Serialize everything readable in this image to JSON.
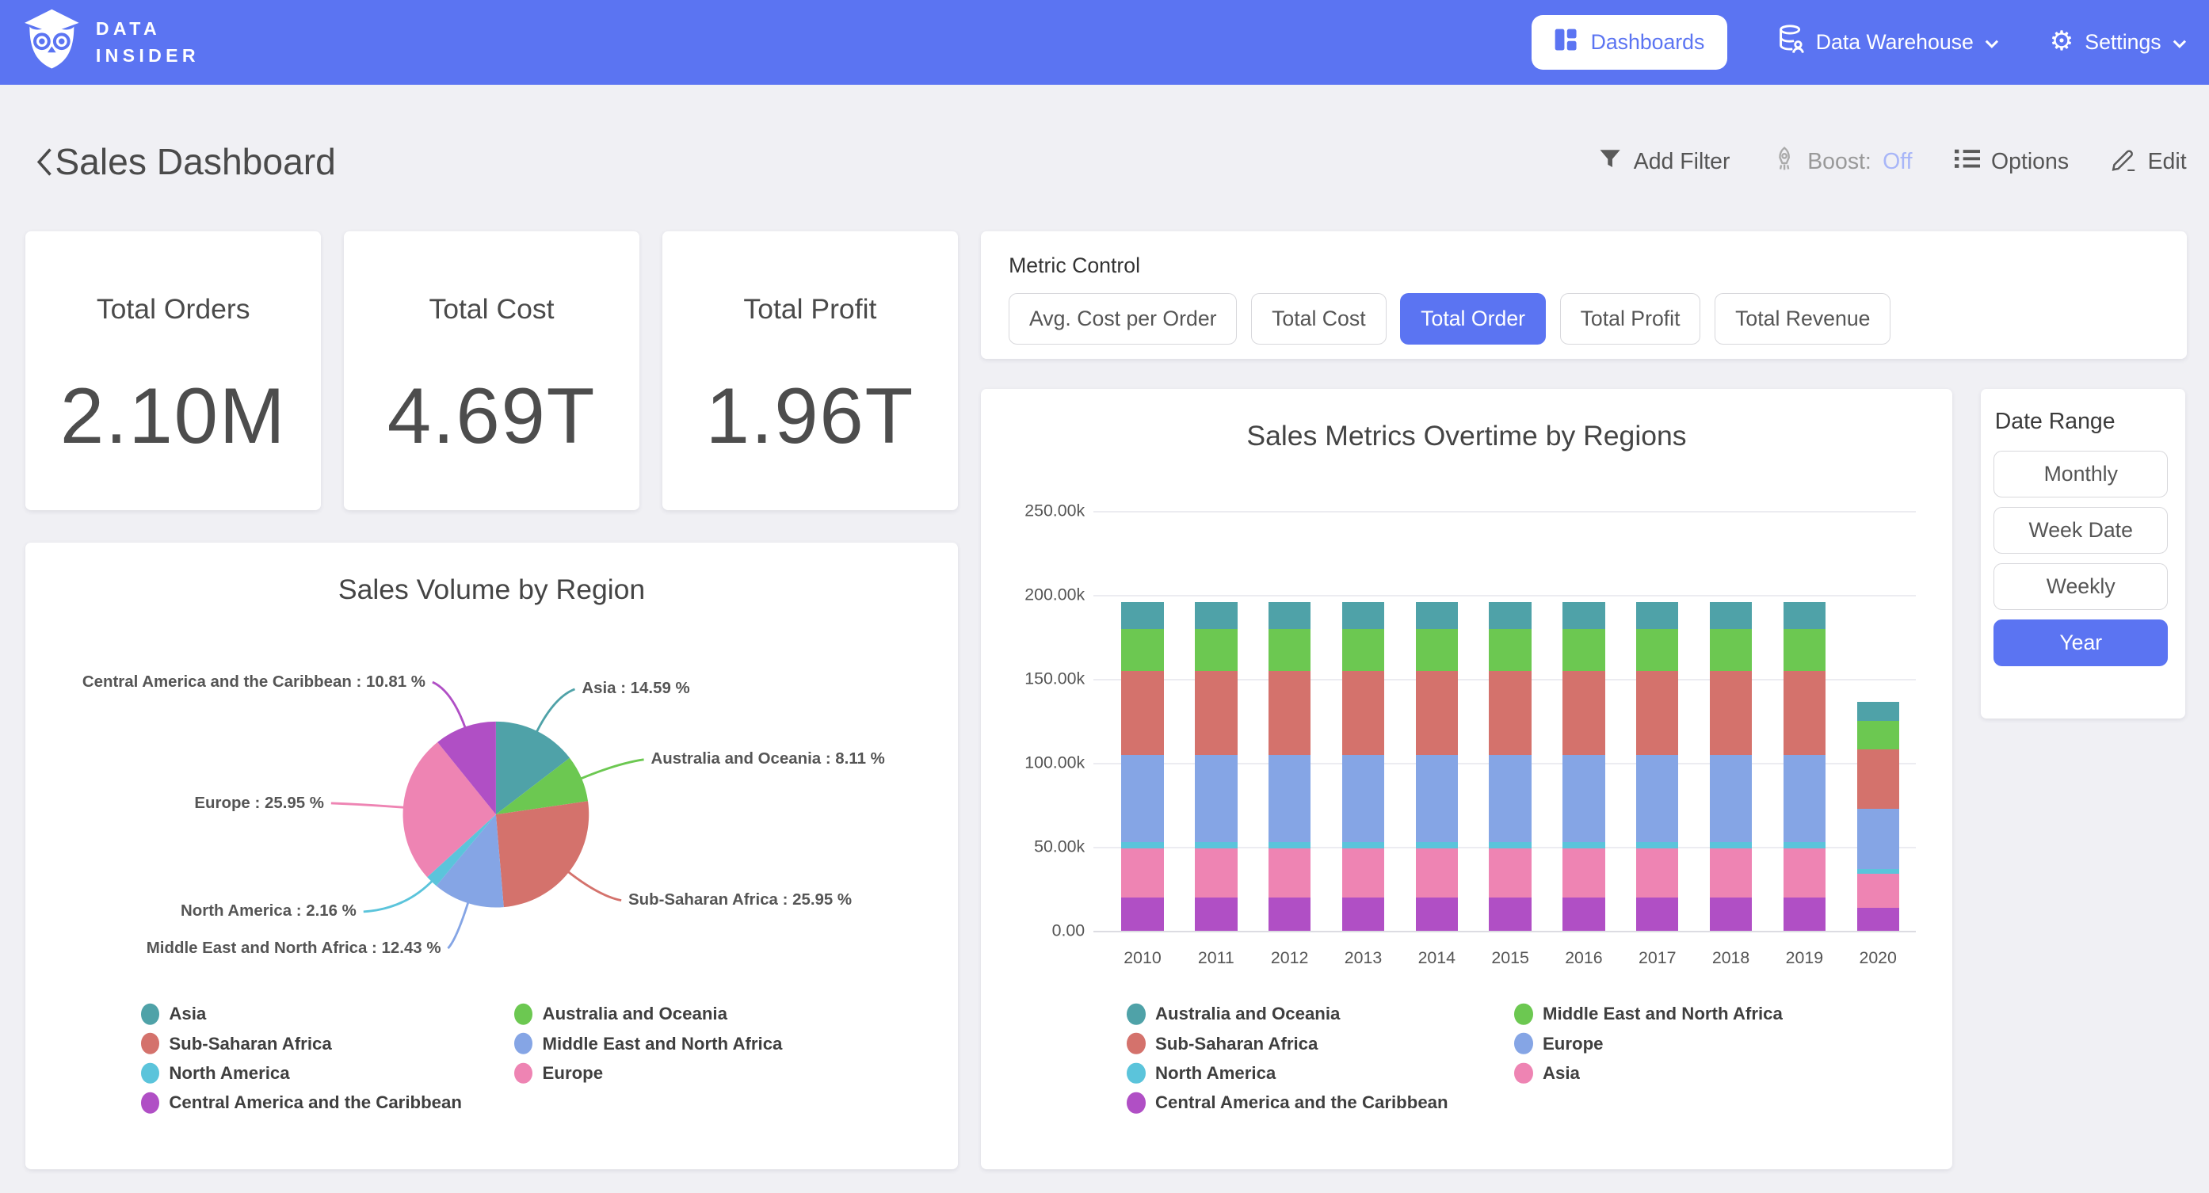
{
  "brand": {
    "line1": "DATA",
    "line2": "INSIDER"
  },
  "nav": {
    "dashboards": "Dashboards",
    "data_warehouse": "Data Warehouse",
    "settings": "Settings"
  },
  "header": {
    "title": "Sales Dashboard",
    "add_filter": "Add Filter",
    "boost_label": "Boost:",
    "boost_state": "Off",
    "options": "Options",
    "edit": "Edit"
  },
  "kpis": [
    {
      "label": "Total Orders",
      "value": "2.10M"
    },
    {
      "label": "Total Cost",
      "value": "4.69T"
    },
    {
      "label": "Total Profit",
      "value": "1.96T"
    }
  ],
  "metric_control": {
    "title": "Metric Control",
    "options": [
      "Avg. Cost per Order",
      "Total Cost",
      "Total Order",
      "Total Profit",
      "Total Revenue"
    ],
    "selected": "Total Order"
  },
  "date_range": {
    "title": "Date Range",
    "options": [
      "Monthly",
      "Week Date",
      "Weekly",
      "Year"
    ],
    "selected": "Year"
  },
  "colors": {
    "accent_blue": "#5B74F2",
    "boost_off": "#A8B6F8",
    "page_bg": "#F0F0F4",
    "teal": "#4FA2A8",
    "green": "#6CC851",
    "red": "#D4726C",
    "periwinkle": "#85A5E5",
    "cyan": "#5BC4DB",
    "pink": "#EE84B3",
    "purple": "#B04FC5"
  },
  "chart_data": [
    {
      "type": "pie",
      "title": "Sales Volume by Region",
      "value_format": "percent",
      "slices": [
        {
          "label": "Asia",
          "pct": 14.59,
          "color": "#4FA2A8"
        },
        {
          "label": "Australia and Oceania",
          "pct": 8.11,
          "color": "#6CC851"
        },
        {
          "label": "Sub-Saharan Africa",
          "pct": 25.95,
          "color": "#D4726C"
        },
        {
          "label": "Middle East and North Africa",
          "pct": 12.43,
          "color": "#85A5E5"
        },
        {
          "label": "North America",
          "pct": 2.16,
          "color": "#5BC4DB"
        },
        {
          "label": "Europe",
          "pct": 25.95,
          "color": "#EE84B3"
        },
        {
          "label": "Central America and the Caribbean",
          "pct": 10.81,
          "color": "#B04FC5"
        }
      ],
      "legend_columns": [
        [
          "Asia",
          "Sub-Saharan Africa",
          "North America",
          "Central America and the Caribbean"
        ],
        [
          "Australia and Oceania",
          "Middle East and North Africa",
          "Europe"
        ]
      ]
    },
    {
      "type": "bar",
      "stacked": true,
      "title": "Sales Metrics Overtime by Regions",
      "categories": [
        "2010",
        "2011",
        "2012",
        "2013",
        "2014",
        "2015",
        "2016",
        "2017",
        "2018",
        "2019",
        "2020"
      ],
      "values_unit": "thousands",
      "ylim": [
        0,
        250
      ],
      "yticks": [
        "0.00",
        "50.00k",
        "100.00k",
        "150.00k",
        "200.00k",
        "250.00k"
      ],
      "grid": true,
      "legend_position": "bottom",
      "series": [
        {
          "name": "Central America and the Caribbean",
          "color": "#B04FC5",
          "values": [
            20,
            20,
            20,
            20,
            20,
            20,
            20,
            20,
            20,
            20,
            14
          ]
        },
        {
          "name": "Asia",
          "color": "#EE84B3",
          "values": [
            29,
            29,
            29,
            29,
            29,
            29,
            29,
            29,
            29,
            29,
            20
          ]
        },
        {
          "name": "North America",
          "color": "#5BC4DB",
          "values": [
            4,
            4,
            4,
            4,
            4,
            4,
            4,
            4,
            4,
            4,
            3
          ]
        },
        {
          "name": "Europe",
          "color": "#85A5E5",
          "values": [
            52,
            52,
            52,
            52,
            52,
            52,
            52,
            52,
            52,
            52,
            36
          ]
        },
        {
          "name": "Sub-Saharan Africa",
          "color": "#D4726C",
          "values": [
            50,
            50,
            50,
            50,
            50,
            50,
            50,
            50,
            50,
            50,
            35
          ]
        },
        {
          "name": "Middle East and North Africa",
          "color": "#6CC851",
          "values": [
            25,
            25,
            25,
            25,
            25,
            25,
            25,
            25,
            25,
            25,
            17
          ]
        },
        {
          "name": "Australia and Oceania",
          "color": "#4FA2A8",
          "values": [
            16,
            16,
            16,
            16,
            16,
            16,
            16,
            16,
            16,
            16,
            11.5
          ]
        }
      ],
      "legend_columns": [
        [
          "Australia and Oceania",
          "Sub-Saharan Africa",
          "North America",
          "Central America and the Caribbean"
        ],
        [
          "Middle East and North Africa",
          "Europe",
          "Asia"
        ]
      ]
    }
  ]
}
